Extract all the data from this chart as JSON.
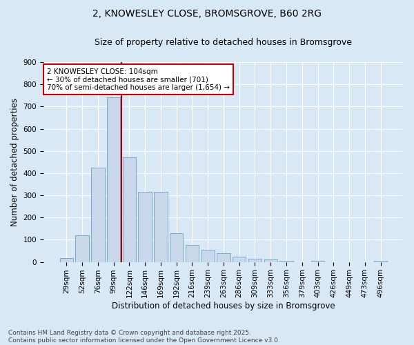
{
  "title_line1": "2, KNOWESLEY CLOSE, BROMSGROVE, B60 2RG",
  "title_line2": "Size of property relative to detached houses in Bromsgrove",
  "xlabel": "Distribution of detached houses by size in Bromsgrove",
  "ylabel": "Number of detached properties",
  "categories": [
    "29sqm",
    "52sqm",
    "76sqm",
    "99sqm",
    "122sqm",
    "146sqm",
    "169sqm",
    "192sqm",
    "216sqm",
    "239sqm",
    "263sqm",
    "286sqm",
    "309sqm",
    "333sqm",
    "356sqm",
    "379sqm",
    "403sqm",
    "426sqm",
    "449sqm",
    "473sqm",
    "496sqm"
  ],
  "values": [
    18,
    120,
    425,
    740,
    470,
    315,
    315,
    130,
    75,
    55,
    40,
    25,
    15,
    10,
    5,
    0,
    5,
    0,
    0,
    0,
    5
  ],
  "bar_color": "#c8d8ea",
  "bar_edge_color": "#7aaac8",
  "vline_x_index": 3.5,
  "vline_color": "#aa0000",
  "annotation_text": "2 KNOWESLEY CLOSE: 104sqm\n← 30% of detached houses are smaller (701)\n70% of semi-detached houses are larger (1,654) →",
  "annotation_box_facecolor": "#ffffff",
  "annotation_box_edgecolor": "#cc0000",
  "ylim": [
    0,
    900
  ],
  "yticks": [
    0,
    100,
    200,
    300,
    400,
    500,
    600,
    700,
    800,
    900
  ],
  "footnote": "Contains HM Land Registry data © Crown copyright and database right 2025.\nContains public sector information licensed under the Open Government Licence v3.0.",
  "bg_color": "#d8e8f4",
  "plot_bg_color": "#d8e8f4",
  "title_fontsize": 10,
  "subtitle_fontsize": 9,
  "axis_label_fontsize": 8.5,
  "tick_fontsize": 7.5,
  "annotation_fontsize": 7.5,
  "footnote_fontsize": 6.5
}
